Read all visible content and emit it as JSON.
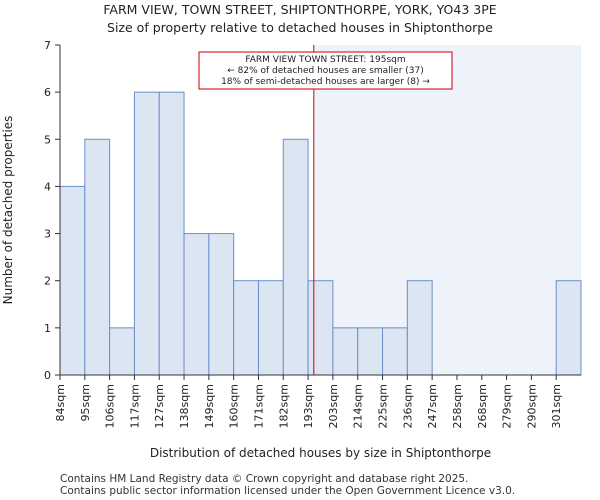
{
  "title": "FARM VIEW, TOWN STREET, SHIPTONTHORPE, YORK, YO43 3PE",
  "subtitle": "Size of property relative to detached houses in Shiptonthorpe",
  "footer": {
    "line1": "Contains HM Land Registry data © Crown copyright and database right 2025.",
    "line2": "Contains public sector information licensed under the Open Government Licence v3.0."
  },
  "chart_data": {
    "type": "bar",
    "categories": [
      "84sqm",
      "95sqm",
      "106sqm",
      "117sqm",
      "127sqm",
      "138sqm",
      "149sqm",
      "160sqm",
      "171sqm",
      "182sqm",
      "193sqm",
      "203sqm",
      "214sqm",
      "225sqm",
      "236sqm",
      "247sqm",
      "258sqm",
      "268sqm",
      "279sqm",
      "290sqm",
      "301sqm"
    ],
    "values": [
      4,
      5,
      1,
      6,
      6,
      3,
      3,
      2,
      2,
      5,
      2,
      1,
      1,
      1,
      2,
      0,
      0,
      0,
      0,
      0,
      2
    ],
    "xlabel": "Distribution of detached houses by size in Shiptonthorpe",
    "ylabel": "Number of detached properties",
    "ylim": [
      0,
      7
    ],
    "yticks": [
      0,
      1,
      2,
      3,
      4,
      5,
      6,
      7
    ],
    "grid": false,
    "property_line": {
      "value": 195,
      "unit": "sqm",
      "color": "#cc0000"
    },
    "annotation": {
      "line1": "FARM VIEW TOWN STREET: 195sqm",
      "line2": "← 82% of detached houses are smaller (37)",
      "line3": "18% of semi-detached houses are larger (8) →"
    },
    "colors": {
      "bar_fill": "#dce6f2",
      "bar_stroke": "#6a8fc8",
      "highlight_region": "#eef2fa",
      "marker": "#cc0000"
    }
  }
}
